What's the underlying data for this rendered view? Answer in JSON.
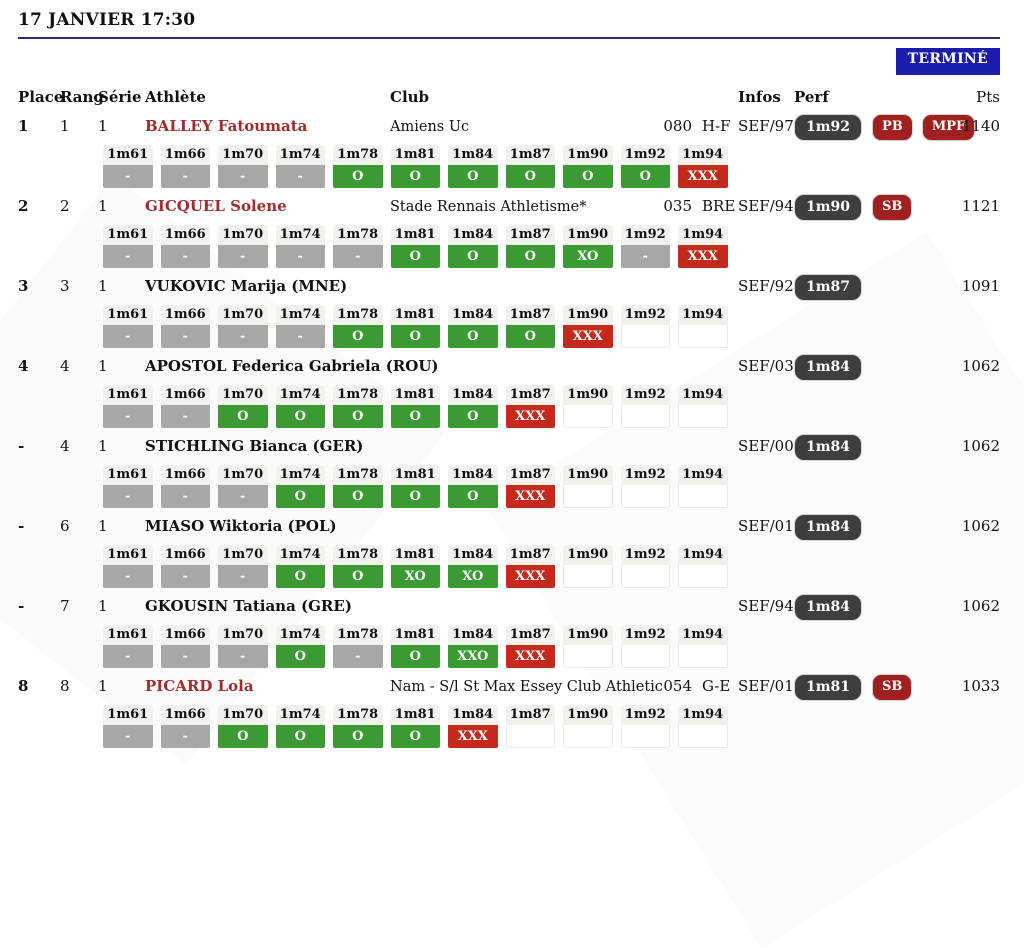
{
  "header": {
    "title": "17 JANVIER 17:30",
    "status_badge": "TERMINÉ"
  },
  "columns": {
    "place": "Place",
    "rang": "Rang",
    "serie": "Série",
    "athlete": "Athlète",
    "club": "Club",
    "infos": "Infos",
    "perf": "Perf",
    "pts": "Pts"
  },
  "heights": [
    "1m61",
    "1m66",
    "1m70",
    "1m74",
    "1m78",
    "1m81",
    "1m84",
    "1m87",
    "1m90",
    "1m92",
    "1m94"
  ],
  "colors": {
    "divider_navy": "#232d7a",
    "status_blue": "#1c1cac",
    "attempt_green": "#3c9a35",
    "attempt_red": "#c4291d",
    "attempt_gray": "#a9a7a5",
    "attempt_header_bg": "#f3f1ee",
    "perf_pill_bg": "#3f3e3c",
    "record_badge_red": "#9e2020",
    "athlete_link_red": "#a02c2c"
  },
  "rows": [
    {
      "place": "1",
      "rang": "1",
      "serie": "1",
      "athlete": "BALLEY Fatoumata",
      "athlete_link": true,
      "club": "Amiens Uc",
      "club_code": "080",
      "club_league": "H-F",
      "infos": "SEF/97",
      "perf": "1m92",
      "badges": [
        "PB",
        "MPF"
      ],
      "pts": "1140",
      "attempts": [
        "-",
        "-",
        "-",
        "-",
        "O",
        "O",
        "O",
        "O",
        "O",
        "O",
        "XXX"
      ]
    },
    {
      "place": "2",
      "rang": "2",
      "serie": "1",
      "athlete": "GICQUEL Solene",
      "athlete_link": true,
      "club": "Stade Rennais Athletisme*",
      "club_code": "035",
      "club_league": "BRE",
      "infos": "SEF/94",
      "perf": "1m90",
      "badges": [
        "SB"
      ],
      "pts": "1121",
      "attempts": [
        "-",
        "-",
        "-",
        "-",
        "-",
        "O",
        "O",
        "O",
        "XO",
        "-",
        "XXX"
      ]
    },
    {
      "place": "3",
      "rang": "3",
      "serie": "1",
      "athlete": "VUKOVIC Marija (MNE)",
      "athlete_link": false,
      "club": "",
      "club_code": "",
      "club_league": "",
      "infos": "SEF/92",
      "perf": "1m87",
      "badges": [],
      "pts": "1091",
      "attempts": [
        "-",
        "-",
        "-",
        "-",
        "O",
        "O",
        "O",
        "O",
        "XXX",
        "",
        ""
      ]
    },
    {
      "place": "4",
      "rang": "4",
      "serie": "1",
      "athlete": "APOSTOL Federica Gabriela (ROU)",
      "athlete_link": false,
      "club": "",
      "club_code": "",
      "club_league": "",
      "infos": "SEF/03",
      "perf": "1m84",
      "badges": [],
      "pts": "1062",
      "attempts": [
        "-",
        "-",
        "O",
        "O",
        "O",
        "O",
        "O",
        "XXX",
        "",
        "",
        ""
      ]
    },
    {
      "place": "-",
      "rang": "4",
      "serie": "1",
      "athlete": "STICHLING Bianca (GER)",
      "athlete_link": false,
      "club": "",
      "club_code": "",
      "club_league": "",
      "infos": "SEF/00",
      "perf": "1m84",
      "badges": [],
      "pts": "1062",
      "attempts": [
        "-",
        "-",
        "-",
        "O",
        "O",
        "O",
        "O",
        "XXX",
        "",
        "",
        ""
      ]
    },
    {
      "place": "-",
      "rang": "6",
      "serie": "1",
      "athlete": "MIASO Wiktoria (POL)",
      "athlete_link": false,
      "club": "",
      "club_code": "",
      "club_league": "",
      "infos": "SEF/01",
      "perf": "1m84",
      "badges": [],
      "pts": "1062",
      "attempts": [
        "-",
        "-",
        "-",
        "O",
        "O",
        "XO",
        "XO",
        "XXX",
        "",
        "",
        ""
      ]
    },
    {
      "place": "-",
      "rang": "7",
      "serie": "1",
      "athlete": "GKOUSIN Tatiana (GRE)",
      "athlete_link": false,
      "club": "",
      "club_code": "",
      "club_league": "",
      "infos": "SEF/94",
      "perf": "1m84",
      "badges": [],
      "pts": "1062",
      "attempts": [
        "-",
        "-",
        "-",
        "O",
        "-",
        "O",
        "XXO",
        "XXX",
        "",
        "",
        ""
      ]
    },
    {
      "place": "8",
      "rang": "8",
      "serie": "1",
      "athlete": "PICARD Lola",
      "athlete_link": true,
      "club": "Nam - S/l St Max Essey Club Athletic",
      "club_code": "054",
      "club_league": "G-E",
      "infos": "SEF/01",
      "perf": "1m81",
      "badges": [
        "SB"
      ],
      "pts": "1033",
      "attempts": [
        "-",
        "-",
        "O",
        "O",
        "O",
        "O",
        "XXX",
        "",
        "",
        "",
        ""
      ]
    }
  ]
}
